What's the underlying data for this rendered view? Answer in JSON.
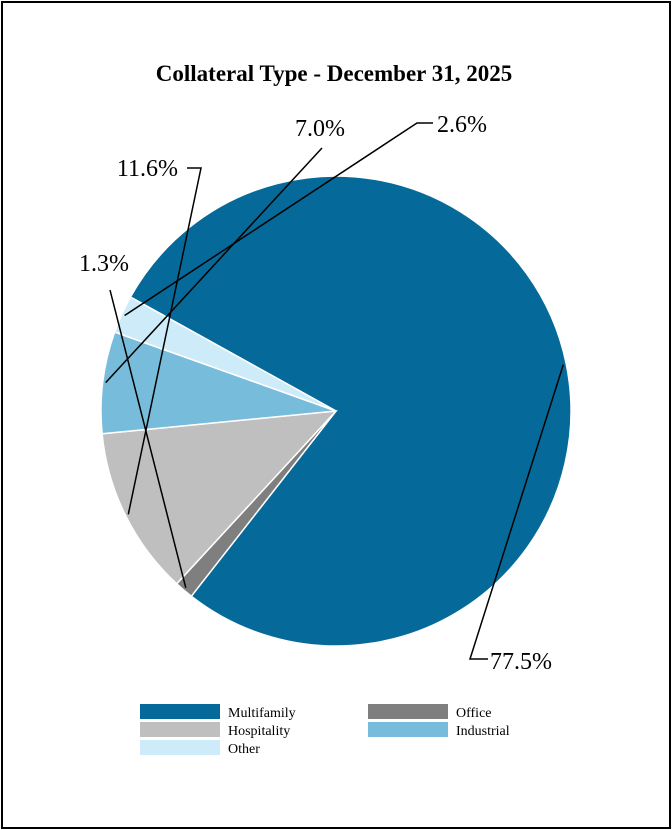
{
  "chart_data": {
    "type": "pie",
    "title": "Collateral Type - December 31, 2025",
    "start_angle_deg": -151,
    "slices": [
      {
        "name": "Multifamily",
        "value": 77.5,
        "label": "77.5%",
        "color": "#056a99"
      },
      {
        "name": "Office",
        "value": 1.3,
        "label": "1.3%",
        "color": "#7f7f7f"
      },
      {
        "name": "Hospitality",
        "value": 11.6,
        "label": "11.6%",
        "color": "#bfbfbf"
      },
      {
        "name": "Industrial",
        "value": 7.0,
        "label": "7.0%",
        "color": "#78bcdb"
      },
      {
        "name": "Other",
        "value": 2.6,
        "label": "2.6%",
        "color": "#cdebf9"
      }
    ],
    "legend": [
      {
        "name": "Multifamily",
        "color": "#056a99"
      },
      {
        "name": "Office",
        "color": "#7f7f7f"
      },
      {
        "name": "Hospitality",
        "color": "#bfbfbf"
      },
      {
        "name": "Industrial",
        "color": "#78bcdb"
      },
      {
        "name": "Other",
        "color": "#cdebf9"
      }
    ],
    "legend_position": "bottom"
  }
}
